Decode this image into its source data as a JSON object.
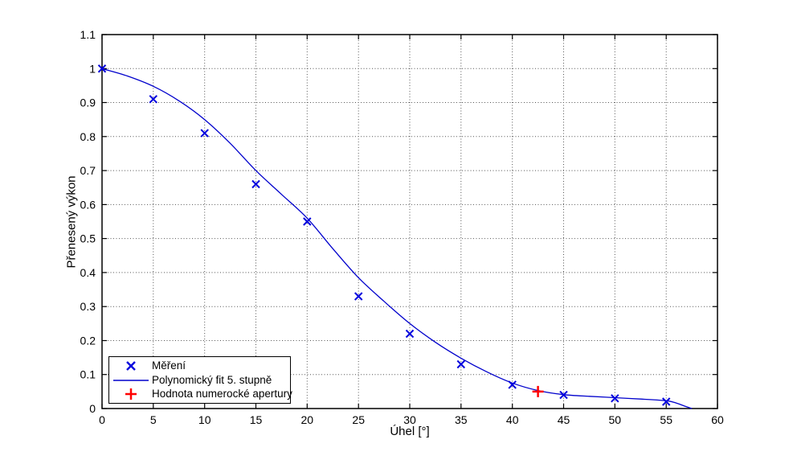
{
  "chart_data": {
    "type": "scatter",
    "title": "",
    "xlabel": "Úhel [°]",
    "ylabel": "Přenesený výkon",
    "xlim": [
      0,
      60
    ],
    "ylim": [
      0,
      1.1
    ],
    "x_ticks": [
      0,
      5,
      10,
      15,
      20,
      25,
      30,
      35,
      40,
      45,
      50,
      55,
      60
    ],
    "y_ticks": [
      0,
      0.1,
      0.2,
      0.3,
      0.4,
      0.5,
      0.6,
      0.7,
      0.8,
      0.9,
      1,
      1.1
    ],
    "x_tick_labels": [
      "0",
      "5",
      "10",
      "15",
      "20",
      "25",
      "30",
      "35",
      "40",
      "45",
      "50",
      "55",
      "60"
    ],
    "y_tick_labels": [
      "0",
      "0.1",
      "0.2",
      "0.3",
      "0.4",
      "0.5",
      "0.6",
      "0.7",
      "0.8",
      "0.9",
      "1",
      "1.1"
    ],
    "grid": "dotted",
    "grid_color": "#555555",
    "frame_color": "#000000",
    "legend_position": "bottom-left",
    "series": [
      {
        "name": "Měření",
        "kind": "scatter",
        "marker": "x",
        "color": "#0000dd",
        "x": [
          0,
          5,
          10,
          15,
          20,
          25,
          30,
          35,
          40,
          45,
          50,
          55
        ],
        "y": [
          1.0,
          0.91,
          0.81,
          0.66,
          0.55,
          0.33,
          0.22,
          0.13,
          0.07,
          0.04,
          0.03,
          0.02
        ]
      },
      {
        "name": "Polynomický fit 5. stupně",
        "kind": "line",
        "color": "#0000cc",
        "x": [
          0,
          2.5,
          5,
          7.5,
          10,
          12.5,
          15,
          17.5,
          20,
          22.5,
          25,
          27.5,
          30,
          32.5,
          35,
          37.5,
          40,
          42.5,
          45,
          47.5,
          50,
          52.5,
          55,
          56,
          57,
          57.5
        ],
        "y": [
          1.0,
          0.978,
          0.948,
          0.905,
          0.85,
          0.78,
          0.7,
          0.63,
          0.56,
          0.47,
          0.385,
          0.315,
          0.25,
          0.195,
          0.148,
          0.108,
          0.075,
          0.053,
          0.041,
          0.036,
          0.032,
          0.028,
          0.023,
          0.016,
          0.005,
          0.0
        ]
      },
      {
        "name": "Hodnota numerocké apertury",
        "kind": "scatter",
        "marker": "+",
        "color": "#ff0000",
        "x": [
          42.5
        ],
        "y": [
          0.05
        ]
      }
    ]
  }
}
